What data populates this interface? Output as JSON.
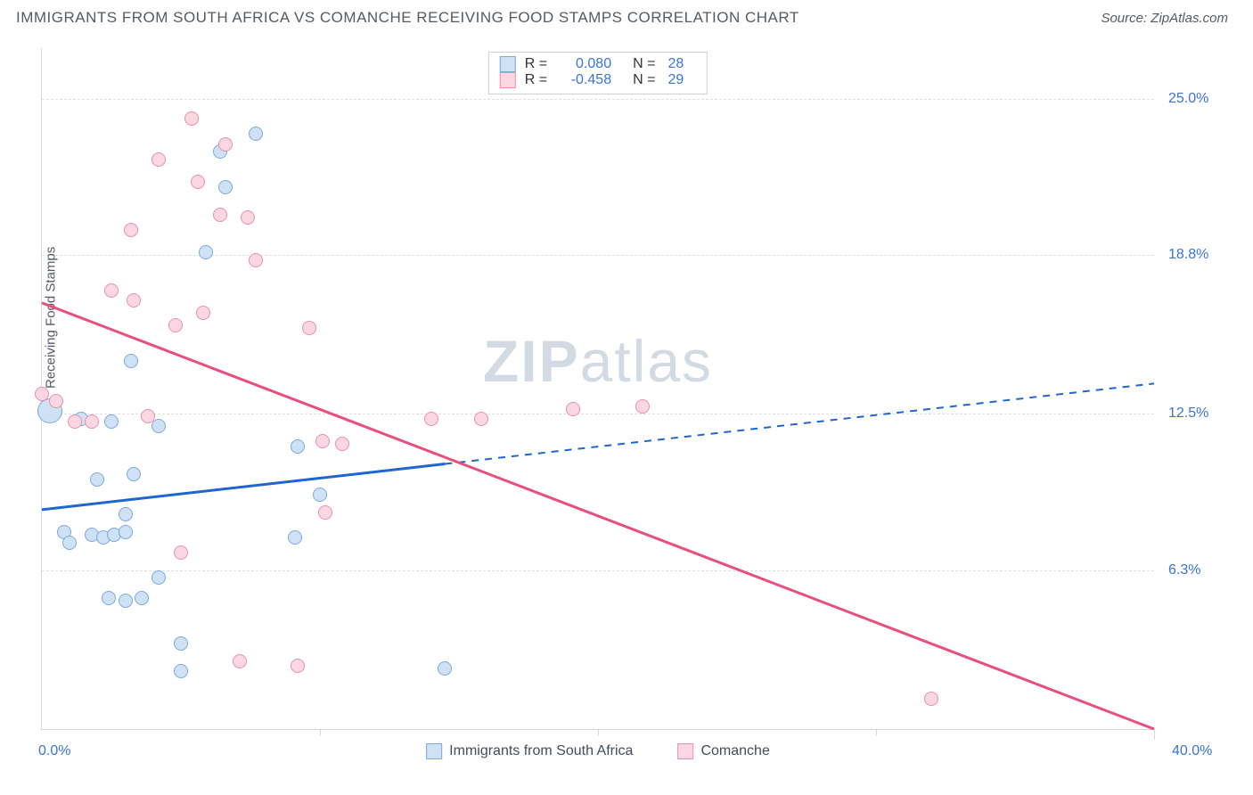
{
  "header": {
    "title": "IMMIGRANTS FROM SOUTH AFRICA VS COMANCHE RECEIVING FOOD STAMPS CORRELATION CHART",
    "source": "Source: ZipAtlas.com"
  },
  "axes": {
    "y_title": "Receiving Food Stamps",
    "x_min": 0.0,
    "x_max": 40.0,
    "y_min": 0.0,
    "y_max": 27.0,
    "y_ticks": [
      6.3,
      12.5,
      18.8,
      25.0
    ],
    "y_tick_labels": [
      "6.3%",
      "12.5%",
      "18.8%",
      "25.0%"
    ],
    "x_ticks_major": [
      0,
      10,
      20,
      30,
      40
    ],
    "x_tick_labels": [
      "0.0%",
      "40.0%"
    ],
    "grid_color": "#dedede",
    "axis_color": "#d6d6d6",
    "label_color": "#3a74d8"
  },
  "watermark": {
    "zip": "ZIP",
    "atlas": "atlas",
    "color": "#d3dae4"
  },
  "series": [
    {
      "id": "sa",
      "name": "Immigrants from South Africa",
      "fill": "#cfe1f4",
      "stroke": "#7aa9dd",
      "line": "#1e66d0",
      "R": "0.080",
      "N": "28",
      "trend": {
        "x1": 0,
        "y1": 8.7,
        "x2": 40,
        "y2": 13.7,
        "solid_to_x": 14.5
      },
      "points": [
        {
          "x": 0.3,
          "y": 12.6,
          "r": 14
        },
        {
          "x": 1.4,
          "y": 12.3,
          "r": 8
        },
        {
          "x": 1.8,
          "y": 7.7,
          "r": 8
        },
        {
          "x": 2.2,
          "y": 7.6,
          "r": 8
        },
        {
          "x": 0.8,
          "y": 7.8,
          "r": 8
        },
        {
          "x": 2.6,
          "y": 7.7,
          "r": 8
        },
        {
          "x": 1.0,
          "y": 7.4,
          "r": 8
        },
        {
          "x": 2.0,
          "y": 9.9,
          "r": 8
        },
        {
          "x": 2.5,
          "y": 12.2,
          "r": 8
        },
        {
          "x": 3.2,
          "y": 14.6,
          "r": 8
        },
        {
          "x": 3.0,
          "y": 7.8,
          "r": 8
        },
        {
          "x": 2.4,
          "y": 5.2,
          "r": 8
        },
        {
          "x": 3.0,
          "y": 5.1,
          "r": 8
        },
        {
          "x": 3.6,
          "y": 5.2,
          "r": 8
        },
        {
          "x": 4.2,
          "y": 6.0,
          "r": 8
        },
        {
          "x": 3.3,
          "y": 10.1,
          "r": 8
        },
        {
          "x": 4.2,
          "y": 12.0,
          "r": 8
        },
        {
          "x": 3.0,
          "y": 8.5,
          "r": 8
        },
        {
          "x": 5.0,
          "y": 3.4,
          "r": 8
        },
        {
          "x": 5.9,
          "y": 18.9,
          "r": 8
        },
        {
          "x": 6.4,
          "y": 22.9,
          "r": 8
        },
        {
          "x": 5.0,
          "y": 2.3,
          "r": 8
        },
        {
          "x": 6.6,
          "y": 21.5,
          "r": 8
        },
        {
          "x": 7.7,
          "y": 23.6,
          "r": 8
        },
        {
          "x": 9.2,
          "y": 11.2,
          "r": 8
        },
        {
          "x": 9.1,
          "y": 7.6,
          "r": 8
        },
        {
          "x": 10.0,
          "y": 9.3,
          "r": 8
        },
        {
          "x": 14.5,
          "y": 2.4,
          "r": 8
        }
      ]
    },
    {
      "id": "cm",
      "name": "Comanche",
      "fill": "#fbd7e1",
      "stroke": "#e98fac",
      "line": "#e94f7c",
      "R": "-0.458",
      "N": "29",
      "trend": {
        "x1": 0,
        "y1": 16.9,
        "x2": 40,
        "y2": 0.0,
        "solid_to_x": 40
      },
      "points": [
        {
          "x": 0.0,
          "y": 13.3,
          "r": 8
        },
        {
          "x": 0.5,
          "y": 13.0,
          "r": 8
        },
        {
          "x": 1.2,
          "y": 12.2,
          "r": 8
        },
        {
          "x": 1.8,
          "y": 12.2,
          "r": 8
        },
        {
          "x": 2.5,
          "y": 17.4,
          "r": 8
        },
        {
          "x": 3.3,
          "y": 17.0,
          "r": 8
        },
        {
          "x": 3.8,
          "y": 12.4,
          "r": 8
        },
        {
          "x": 3.2,
          "y": 19.8,
          "r": 8
        },
        {
          "x": 4.2,
          "y": 22.6,
          "r": 8
        },
        {
          "x": 4.8,
          "y": 16.0,
          "r": 8
        },
        {
          "x": 5.4,
          "y": 24.2,
          "r": 8
        },
        {
          "x": 5.8,
          "y": 16.5,
          "r": 8
        },
        {
          "x": 5.6,
          "y": 21.7,
          "r": 8
        },
        {
          "x": 6.6,
          "y": 23.2,
          "r": 8
        },
        {
          "x": 5.0,
          "y": 7.0,
          "r": 8
        },
        {
          "x": 6.4,
          "y": 20.4,
          "r": 8
        },
        {
          "x": 7.4,
          "y": 20.3,
          "r": 8
        },
        {
          "x": 7.7,
          "y": 18.6,
          "r": 8
        },
        {
          "x": 7.1,
          "y": 2.7,
          "r": 8
        },
        {
          "x": 9.6,
          "y": 15.9,
          "r": 8
        },
        {
          "x": 10.1,
          "y": 11.4,
          "r": 8
        },
        {
          "x": 9.2,
          "y": 2.5,
          "r": 8
        },
        {
          "x": 10.8,
          "y": 11.3,
          "r": 8
        },
        {
          "x": 10.2,
          "y": 8.6,
          "r": 8
        },
        {
          "x": 14.0,
          "y": 12.3,
          "r": 8
        },
        {
          "x": 15.8,
          "y": 12.3,
          "r": 8
        },
        {
          "x": 19.1,
          "y": 12.7,
          "r": 8
        },
        {
          "x": 21.6,
          "y": 12.8,
          "r": 8
        },
        {
          "x": 32.0,
          "y": 1.2,
          "r": 8
        }
      ]
    }
  ],
  "legend_top_labels": {
    "R": "R =",
    "N": "N ="
  },
  "legend_bottom": [
    {
      "series": "sa"
    },
    {
      "series": "cm"
    }
  ]
}
